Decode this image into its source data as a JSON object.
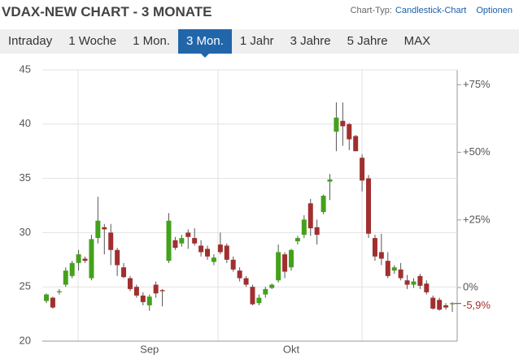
{
  "header": {
    "title": "VDAX-NEW CHART - 3 MONATE",
    "chart_type_label": "Chart-Typ:",
    "chart_type": "Candlestick-Chart",
    "options": "Optionen"
  },
  "tabs": [
    "Intraday",
    "1 Woche",
    "1 Mon.",
    "3 Mon.",
    "1 Jahr",
    "3 Jahre",
    "5 Jahre",
    "MAX"
  ],
  "active_tab": 3,
  "chart_data": {
    "type": "candlestick",
    "categories": [
      null,
      null,
      null,
      null,
      null,
      null,
      null,
      null,
      null,
      null,
      null,
      null,
      null,
      null,
      null,
      null,
      "Sep",
      null,
      null,
      null,
      null,
      null,
      null,
      null,
      null,
      null,
      null,
      null,
      null,
      null,
      null,
      null,
      null,
      null,
      null,
      null,
      null,
      null,
      "Okt",
      null,
      null,
      null,
      null,
      null,
      null,
      null,
      null,
      null,
      null,
      null,
      null,
      null,
      null,
      null,
      null,
      null,
      null,
      null,
      null,
      null,
      null,
      null,
      null,
      null
    ],
    "open": [
      23.7,
      24.0,
      24.5,
      25.2,
      26.0,
      27.2,
      27.6,
      25.8,
      29.5,
      30.5,
      30.0,
      28.4,
      26.8,
      25.8,
      25.0,
      24.2,
      23.3,
      25.2,
      24.7,
      27.4,
      29.3,
      29.0,
      30.0,
      29.5,
      28.8,
      28.5,
      27.3,
      28.9,
      28.8,
      27.5,
      26.5,
      25.8,
      25.0,
      23.5,
      24.3,
      24.9,
      25.6,
      28.0,
      26.8,
      29.2,
      29.8,
      32.7,
      30.5,
      31.9,
      34.7,
      39.3,
      40.3,
      40.0,
      38.9,
      36.9,
      35.0,
      29.5,
      28.2,
      27.4,
      26.5,
      26.6,
      25.6,
      25.2,
      26.0,
      25.3,
      24.0,
      23.8,
      23.3,
      23.4
    ],
    "high": [
      24.4,
      24.1,
      24.8,
      26.8,
      27.4,
      28.4,
      27.8,
      29.8,
      33.3,
      30.8,
      30.8,
      28.6,
      27.2,
      26.0,
      25.2,
      24.5,
      24.3,
      25.5,
      24.8,
      31.8,
      29.6,
      29.8,
      30.3,
      30.4,
      29.3,
      28.8,
      28.0,
      30.0,
      29.0,
      27.8,
      26.8,
      26.0,
      25.2,
      24.3,
      25.0,
      25.3,
      28.9,
      28.2,
      28.5,
      29.7,
      31.6,
      33.1,
      31.2,
      33.5,
      35.4,
      42.0,
      42.0,
      40.1,
      39.0,
      37.2,
      35.3,
      29.8,
      29.9,
      28.2,
      27.0,
      27.2,
      26.1,
      25.8,
      26.2,
      25.6,
      24.2,
      24.0,
      23.5,
      23.6
    ],
    "low": [
      23.5,
      23.0,
      24.3,
      25.0,
      25.8,
      26.5,
      27.2,
      25.6,
      29.0,
      28.0,
      27.0,
      26.0,
      25.8,
      24.6,
      24.0,
      23.3,
      22.8,
      24.0,
      23.2,
      27.2,
      28.4,
      28.7,
      28.5,
      28.8,
      27.8,
      27.5,
      27.0,
      28.0,
      27.2,
      26.4,
      25.5,
      25.0,
      23.3,
      23.3,
      24.0,
      24.8,
      25.4,
      25.8,
      26.5,
      28.9,
      29.5,
      29.7,
      28.9,
      31.7,
      33.0,
      37.5,
      38.0,
      37.6,
      37.5,
      33.8,
      29.5,
      27.4,
      27.0,
      25.8,
      26.2,
      25.6,
      24.8,
      24.9,
      24.8,
      24.3,
      22.9,
      22.8,
      22.9,
      22.7
    ],
    "close": [
      24.3,
      23.1,
      24.6,
      26.5,
      27.2,
      28.0,
      27.4,
      29.4,
      31.1,
      30.3,
      28.4,
      27.0,
      25.9,
      24.8,
      24.2,
      23.6,
      24.1,
      24.4,
      24.6,
      31.1,
      28.6,
      29.5,
      29.6,
      29.0,
      28.2,
      27.8,
      27.7,
      28.2,
      27.5,
      26.6,
      25.8,
      25.2,
      23.4,
      24.0,
      24.8,
      25.2,
      28.2,
      26.4,
      28.4,
      29.5,
      31.2,
      30.4,
      29.8,
      33.4,
      34.9,
      40.6,
      39.8,
      38.6,
      37.5,
      34.8,
      29.9,
      27.8,
      27.6,
      26.0,
      26.8,
      25.8,
      25.2,
      25.5,
      25.1,
      24.5,
      23.0,
      22.9,
      23.1,
      23.5
    ],
    "up_color": "#44a11c",
    "down_color": "#a12f2f",
    "ylim": [
      20,
      45
    ],
    "yticks": [
      20,
      25,
      30,
      35,
      40,
      45
    ],
    "y2lim": [
      -19.8,
      80.5
    ],
    "y2ticks": [
      {
        "value": 0,
        "label": "0%"
      },
      {
        "value": 25,
        "label": "+25%"
      },
      {
        "value": 50,
        "label": "+50%"
      },
      {
        "value": 75,
        "label": "+75%"
      }
    ],
    "annotation": {
      "text": "-5,9%",
      "value": -5.9,
      "axis": "y2",
      "color": "#a12f2f"
    },
    "grid": true
  }
}
